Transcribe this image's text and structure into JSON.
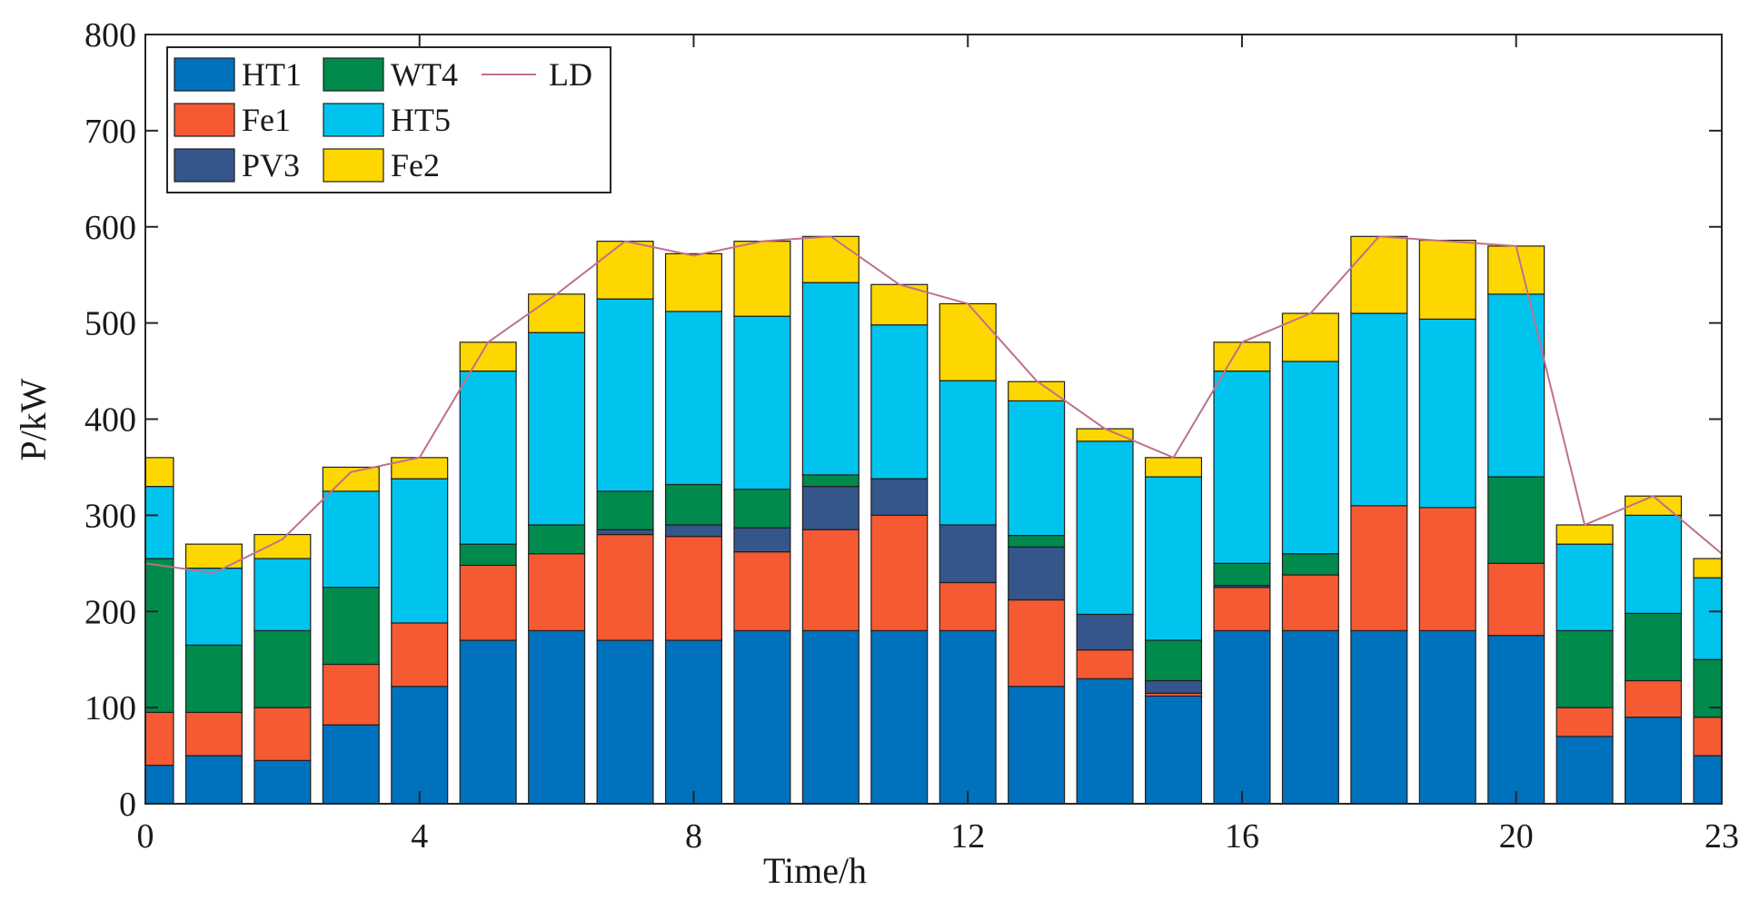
{
  "chart_data": {
    "type": "bar",
    "stacked": true,
    "title": "",
    "xlabel": "Time/h",
    "ylabel": "P/kW",
    "xlim": [
      0,
      23
    ],
    "ylim": [
      0,
      800
    ],
    "x": [
      0,
      1,
      2,
      3,
      4,
      5,
      6,
      7,
      8,
      9,
      10,
      11,
      12,
      13,
      14,
      15,
      16,
      17,
      18,
      19,
      20,
      21,
      22,
      23
    ],
    "xticks": [
      0,
      4,
      8,
      12,
      16,
      20,
      23
    ],
    "xtick_labels": [
      "0",
      "4",
      "8",
      "12",
      "16",
      "20",
      "23"
    ],
    "yticks": [
      0,
      100,
      200,
      300,
      400,
      500,
      600,
      700,
      800
    ],
    "ytick_labels": [
      "0",
      "100",
      "200",
      "300",
      "400",
      "500",
      "600",
      "700",
      "800"
    ],
    "legend_position": "top-left",
    "series": [
      {
        "name": "HT1",
        "color": "#0072BD",
        "values": [
          40,
          50,
          45,
          82,
          122,
          170,
          180,
          170,
          170,
          180,
          180,
          180,
          180,
          122,
          130,
          112,
          180,
          180,
          180,
          180,
          175,
          70,
          90,
          50
        ]
      },
      {
        "name": "Fe1",
        "color": "#F55A32",
        "values": [
          55,
          45,
          55,
          63,
          66,
          78,
          80,
          110,
          108,
          82,
          105,
          120,
          50,
          90,
          30,
          3,
          45,
          58,
          130,
          128,
          75,
          30,
          38,
          40
        ]
      },
      {
        "name": "PV3",
        "color": "#34568B",
        "values": [
          0,
          0,
          0,
          0,
          0,
          0,
          0,
          5,
          12,
          25,
          45,
          38,
          60,
          55,
          37,
          13,
          2,
          0,
          0,
          0,
          0,
          0,
          0,
          0
        ]
      },
      {
        "name": "WT4",
        "color": "#008A4C",
        "values": [
          160,
          70,
          80,
          80,
          0,
          22,
          30,
          40,
          42,
          40,
          12,
          0,
          0,
          12,
          0,
          42,
          23,
          22,
          0,
          0,
          90,
          80,
          70,
          60
        ]
      },
      {
        "name": "HT5",
        "color": "#00C4EE",
        "values": [
          75,
          80,
          75,
          100,
          150,
          180,
          200,
          200,
          180,
          180,
          200,
          160,
          150,
          140,
          180,
          170,
          200,
          200,
          200,
          196,
          190,
          90,
          102,
          85
        ]
      },
      {
        "name": "Fe2",
        "color": "#FFD700",
        "values": [
          30,
          25,
          25,
          25,
          22,
          30,
          40,
          60,
          60,
          78,
          48,
          42,
          80,
          20,
          13,
          20,
          30,
          50,
          80,
          82,
          50,
          20,
          20,
          20
        ]
      }
    ],
    "line_series": {
      "name": "LD",
      "color": "#C0708A",
      "values": [
        250,
        240,
        275,
        345,
        360,
        480,
        530,
        585,
        570,
        585,
        590,
        540,
        520,
        440,
        390,
        360,
        480,
        510,
        590,
        585,
        580,
        290,
        320,
        260
      ]
    }
  }
}
